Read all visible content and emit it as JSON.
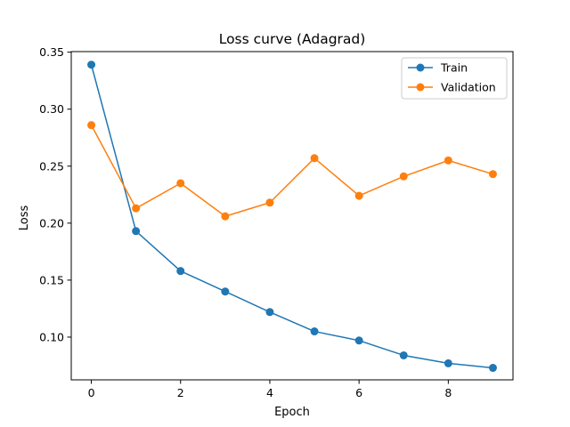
{
  "chart_data": {
    "type": "line",
    "title": "Loss curve (Adagrad)",
    "xlabel": "Epoch",
    "ylabel": "Loss",
    "x": [
      0,
      1,
      2,
      3,
      4,
      5,
      6,
      7,
      8,
      9
    ],
    "xlim": [
      -0.45,
      9.45
    ],
    "ylim": [
      0.0625,
      0.3505
    ],
    "xticks": [
      0,
      2,
      4,
      6,
      8
    ],
    "xtick_labels": [
      "0",
      "2",
      "4",
      "6",
      "8"
    ],
    "yticks": [
      0.1,
      0.15,
      0.2,
      0.25,
      0.3,
      0.35
    ],
    "ytick_labels": [
      "0.10",
      "0.15",
      "0.20",
      "0.25",
      "0.30",
      "0.35"
    ],
    "grid": false,
    "legend_position": "top-right",
    "series": [
      {
        "name": "Train",
        "color": "#1f77b4",
        "marker": "circle",
        "values": [
          0.339,
          0.193,
          0.158,
          0.14,
          0.122,
          0.105,
          0.097,
          0.084,
          0.077,
          0.073
        ]
      },
      {
        "name": "Validation",
        "color": "#ff7f0e",
        "marker": "circle",
        "values": [
          0.286,
          0.213,
          0.235,
          0.206,
          0.218,
          0.257,
          0.224,
          0.241,
          0.255,
          0.243
        ]
      }
    ]
  }
}
